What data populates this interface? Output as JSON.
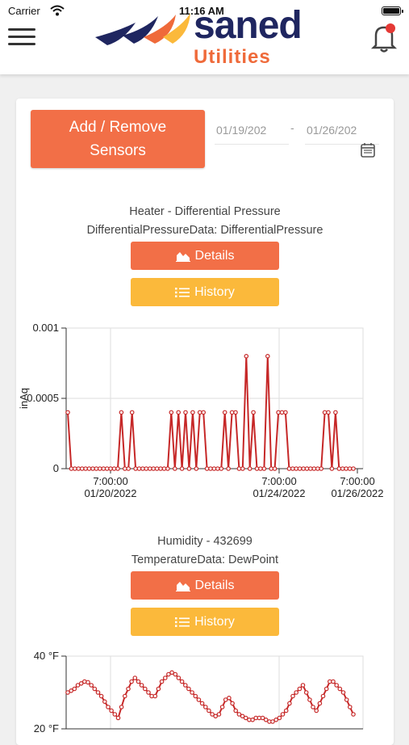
{
  "status_bar": {
    "carrier": "Carrier",
    "time": "11:16 AM"
  },
  "header": {
    "brand": "saned",
    "brand_sub": "Utilities"
  },
  "toolbar": {
    "add_remove_label_line1": "Add / Remove",
    "add_remove_label_line2": "Sensors",
    "date_from": "01/19/202",
    "date_to": "01/26/202",
    "date_separator": "-"
  },
  "sensors": [
    {
      "title_line1": "Heater - Differential Pressure",
      "title_line2": "DifferentialPressureData: DifferentialPressure",
      "details_label": "Details",
      "history_label": "History"
    },
    {
      "title_line1": "Humidity - 432699",
      "title_line2": "TemperatureData: DewPoint",
      "details_label": "Details",
      "history_label": "History"
    }
  ],
  "colors": {
    "accent_orange": "#f26f47",
    "accent_yellow": "#fbb93b",
    "series_red": "#c62828",
    "brand_navy": "#1f2660"
  },
  "chart_data": [
    {
      "type": "line",
      "ylabel": "inAq",
      "ylim": [
        0,
        0.001
      ],
      "yticks": [
        "0.001",
        "0.0005",
        "0"
      ],
      "xticks": [
        {
          "time": "7:00:00",
          "date": "01/20/2022"
        },
        {
          "time": "7:00:00",
          "date": "01/24/2022"
        },
        {
          "time": "7:00:00",
          "date": "01/26/2022"
        }
      ],
      "grid": true,
      "series": [
        {
          "values": [
            0.0004,
            0,
            0,
            0,
            0,
            0,
            0,
            0,
            0,
            0,
            0,
            0,
            0,
            0,
            0,
            0.0004,
            0,
            0,
            0.0004,
            0,
            0,
            0,
            0,
            0,
            0,
            0,
            0,
            0,
            0,
            0.0004,
            0,
            0.0004,
            0,
            0.0004,
            0,
            0.0004,
            0,
            0.0004,
            0.0004,
            0,
            0,
            0,
            0,
            0,
            0.0004,
            0,
            0.0004,
            0.0004,
            0,
            0,
            0.0008,
            0,
            0.0004,
            0,
            0,
            0,
            0.0008,
            0,
            0,
            0.0004,
            0.0004,
            0.0004,
            0,
            0,
            0,
            0,
            0,
            0,
            0,
            0,
            0,
            0,
            0.0004,
            0.0004,
            0,
            0.0004,
            0,
            0,
            0,
            0,
            0
          ]
        }
      ]
    },
    {
      "type": "line",
      "ylabel": "",
      "ylim": [
        20,
        40
      ],
      "yticks": [
        "40 °F",
        "20 °F"
      ],
      "grid": true,
      "series": [
        {
          "values": [
            30,
            30.5,
            31,
            32,
            32.5,
            33,
            32.8,
            32,
            31,
            30,
            29,
            27.5,
            26,
            25,
            24,
            23,
            26,
            29,
            31,
            33,
            34,
            33,
            32,
            31,
            30,
            29,
            29,
            31,
            33,
            34,
            35,
            35.5,
            35,
            34,
            33,
            32,
            31,
            30,
            29,
            28,
            27,
            26,
            25,
            24,
            23.5,
            24,
            26,
            28,
            28.5,
            27,
            25,
            24,
            23.5,
            23,
            22.5,
            22.5,
            23,
            23,
            23,
            22.5,
            22,
            22,
            22.5,
            23,
            24,
            25,
            27,
            29,
            30,
            31,
            32,
            30,
            28,
            26,
            25,
            27,
            29,
            31,
            33,
            33,
            32,
            31,
            30,
            28,
            26,
            24
          ]
        }
      ]
    }
  ]
}
